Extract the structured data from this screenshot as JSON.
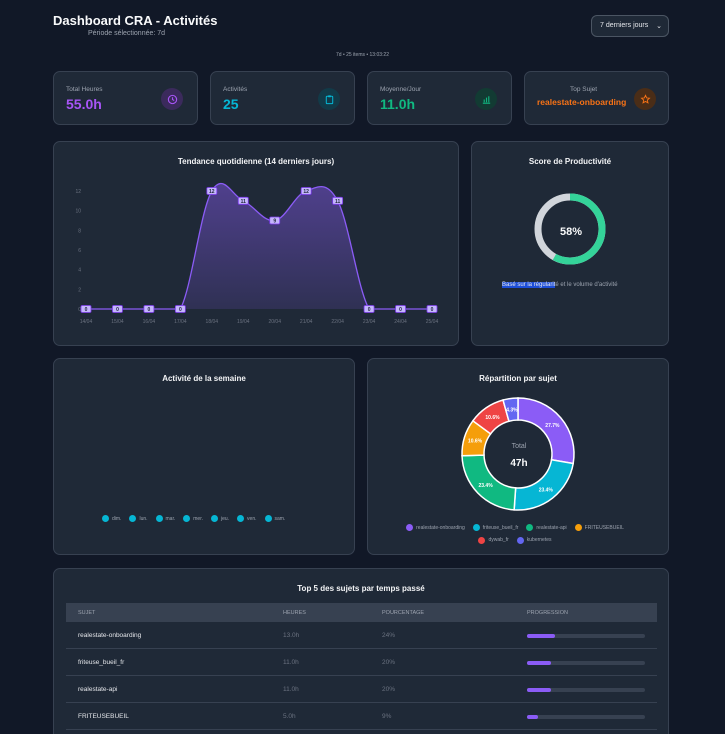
{
  "header": {
    "title": "Dashboard CRA - Activités",
    "period_label": "Période sélectionnée: 7d",
    "meta": "7d • 25 items • 13:03:22",
    "period_select": "7 derniers jours"
  },
  "kpis": [
    {
      "label": "Total Heures",
      "value": "55.0h",
      "icon": "clock-icon",
      "color": "#a855f7"
    },
    {
      "label": "Activités",
      "value": "25",
      "icon": "clipboard-icon",
      "color": "#06b6d4"
    },
    {
      "label": "Moyenne/Jour",
      "value": "11.0h",
      "icon": "bar-chart-icon",
      "color": "#10b981"
    },
    {
      "label": "Top Sujet",
      "value": "realestate-onboarding",
      "icon": "star-icon",
      "color": "#f97316"
    }
  ],
  "trend": {
    "title": "Tendance quotidienne (14 derniers jours)",
    "chart_data": {
      "type": "area",
      "x": [
        "14/04",
        "15/04",
        "16/04",
        "17/04",
        "18/04",
        "19/04",
        "20/04",
        "21/04",
        "22/04",
        "23/04",
        "24/04",
        "25/04"
      ],
      "values": [
        0,
        0,
        0,
        0,
        12,
        11,
        9,
        12,
        11,
        0,
        0,
        0
      ],
      "y_ticks": [
        "0",
        "2",
        "4",
        "6",
        "8",
        "10",
        "12"
      ],
      "ylim": [
        0,
        12
      ],
      "color": "#8b5cf6"
    }
  },
  "score": {
    "title": "Score de Productivité",
    "value_text": "58%",
    "value": 58,
    "note_highlight": "Basé sur la régularit",
    "note_rest": "é et le volume d'activité",
    "color": "#34d399"
  },
  "week": {
    "title": "Activité de la semaine",
    "legend": [
      {
        "label": "dim.",
        "color": "#06b6d4"
      },
      {
        "label": "lun.",
        "color": "#06b6d4"
      },
      {
        "label": "mar.",
        "color": "#06b6d4"
      },
      {
        "label": "mer.",
        "color": "#06b6d4"
      },
      {
        "label": "jeu.",
        "color": "#06b6d4"
      },
      {
        "label": "ven.",
        "color": "#06b6d4"
      },
      {
        "label": "sam.",
        "color": "#06b6d4"
      }
    ]
  },
  "repartition": {
    "title": "Répartition par sujet",
    "center_label": "Total",
    "center_value": "47h",
    "chart_data": {
      "type": "pie",
      "slices": [
        {
          "name": "realestate-onboarding",
          "value": 27.7,
          "label": "27.7%",
          "color": "#8b5cf6"
        },
        {
          "name": "friteuse_bueil_fr",
          "value": 23.4,
          "label": "23.4%",
          "color": "#06b6d4"
        },
        {
          "name": "realestate-api",
          "value": 23.4,
          "label": "23.4%",
          "color": "#10b981"
        },
        {
          "name": "FRITEUSEBUEIL",
          "value": 10.6,
          "label": "10.6%",
          "color": "#f59e0b"
        },
        {
          "name": "dywab_fr",
          "value": 10.6,
          "label": "10.6%",
          "color": "#ef4444"
        },
        {
          "name": "kubernetes",
          "value": 4.3,
          "label": "4.3%",
          "color": "#6366f1"
        }
      ]
    }
  },
  "top5": {
    "title": "Top 5 des sujets par temps passé",
    "columns": [
      "SUJET",
      "HEURES",
      "POURCENTAGE",
      "PROGRESSION"
    ],
    "rows": [
      {
        "sujet": "realestate-onboarding",
        "heures": "13.0h",
        "pct": "24%",
        "progress": 24
      },
      {
        "sujet": "friteuse_bueil_fr",
        "heures": "11.0h",
        "pct": "20%",
        "progress": 20
      },
      {
        "sujet": "realestate-api",
        "heures": "11.0h",
        "pct": "20%",
        "progress": 20
      },
      {
        "sujet": "FRITEUSEBUEIL",
        "heures": "5.0h",
        "pct": "9%",
        "progress": 9
      }
    ]
  }
}
